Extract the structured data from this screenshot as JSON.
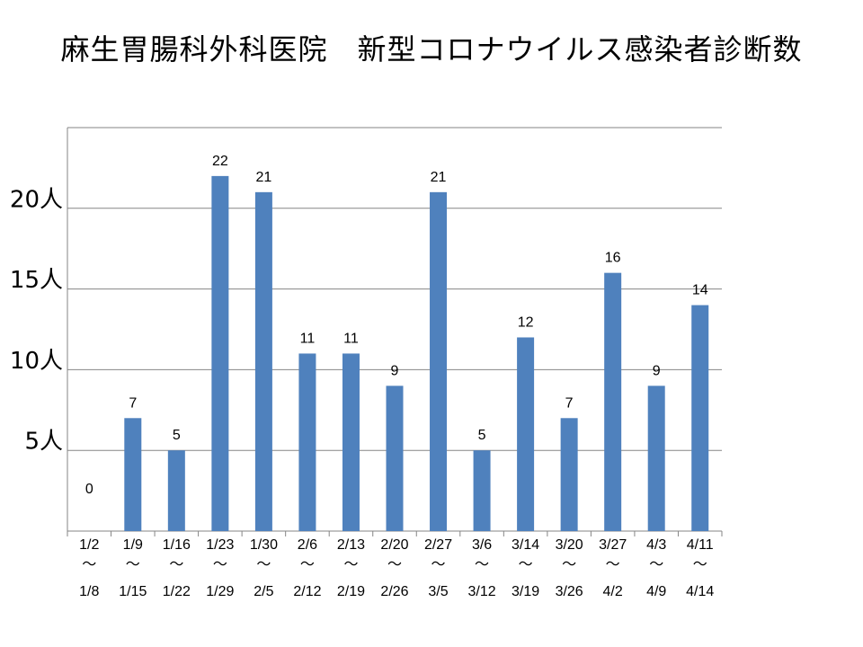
{
  "page": {
    "title": "麻生胃腸科外科医院　新型コロナウイルス感染者診断数"
  },
  "chart_data": {
    "type": "bar",
    "title": "麻生胃腸科外科医院　新型コロナウイルス感染者診断数",
    "categories": [
      {
        "start": "1/2",
        "end": "1/8"
      },
      {
        "start": "1/9",
        "end": "1/15"
      },
      {
        "start": "1/16",
        "end": "1/22"
      },
      {
        "start": "1/23",
        "end": "1/29"
      },
      {
        "start": "1/30",
        "end": "2/5"
      },
      {
        "start": "2/6",
        "end": "2/12"
      },
      {
        "start": "2/13",
        "end": "2/19"
      },
      {
        "start": "2/20",
        "end": "2/26"
      },
      {
        "start": "2/27",
        "end": "3/5"
      },
      {
        "start": "3/6",
        "end": "3/12"
      },
      {
        "start": "3/14",
        "end": "3/19"
      },
      {
        "start": "3/20",
        "end": "3/26"
      },
      {
        "start": "3/27",
        "end": "4/2"
      },
      {
        "start": "4/3",
        "end": "4/9"
      },
      {
        "start": "4/11",
        "end": "4/14"
      }
    ],
    "range_separator": "～",
    "values": [
      0,
      7,
      5,
      22,
      21,
      11,
      11,
      9,
      21,
      5,
      12,
      7,
      16,
      9,
      14
    ],
    "data_labels": [
      "0",
      "7",
      "5",
      "22",
      "21",
      "11",
      "11",
      "9",
      "21",
      "5",
      "12",
      "7",
      "16",
      "9",
      "14"
    ],
    "y_ticks": [
      {
        "value": 5,
        "label": "5人"
      },
      {
        "value": 10,
        "label": "10人"
      },
      {
        "value": 15,
        "label": "15人"
      },
      {
        "value": 20,
        "label": "20人"
      }
    ],
    "ylim": [
      0,
      25
    ],
    "grid": true,
    "legend": "none",
    "bar_color": "#4f81bd",
    "grid_color": "#868686"
  }
}
